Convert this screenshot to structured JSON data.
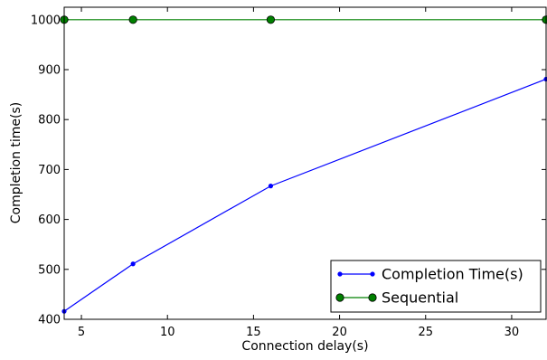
{
  "chart_data": {
    "type": "line",
    "title": "",
    "xlabel": "Connection delay(s)",
    "ylabel": "Completion time(s)",
    "xlim": [
      4,
      32
    ],
    "ylim": [
      400,
      1025
    ],
    "xticks": [
      5,
      10,
      15,
      20,
      25,
      30
    ],
    "yticks": [
      400,
      500,
      600,
      700,
      800,
      900,
      1000
    ],
    "grid": false,
    "legend_position": "lower-right",
    "series": [
      {
        "name": "Completion Time(s)",
        "color": "#0000ff",
        "marker": "small-dot",
        "x": [
          4,
          8,
          16,
          32
        ],
        "y": [
          416,
          511,
          667,
          881
        ]
      },
      {
        "name": "Sequential",
        "color": "#008000",
        "marker": "large-circle",
        "x": [
          4,
          8,
          16,
          32
        ],
        "y": [
          1000,
          1000,
          1000,
          1000
        ]
      }
    ]
  }
}
